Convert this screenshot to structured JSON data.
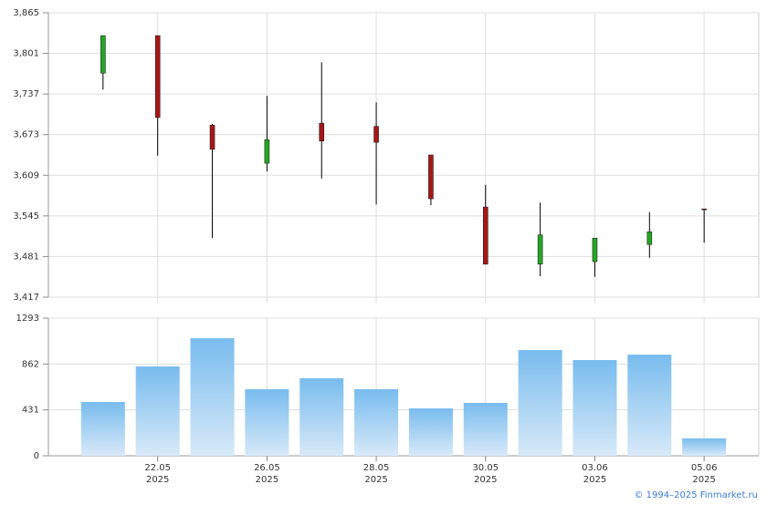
{
  "chart_data": [
    {
      "type": "candlestick",
      "open": [
        3770,
        3829,
        3688,
        3628,
        3691,
        3686,
        3641,
        3559,
        3469,
        3473,
        3500,
        3556
      ],
      "high": [
        3829,
        3829,
        3690,
        3734,
        3787,
        3724,
        3641,
        3594,
        3566,
        3510,
        3551,
        3556
      ],
      "low": [
        3744,
        3640,
        3510,
        3615,
        3604,
        3563,
        3562,
        3469,
        3450,
        3449,
        3479,
        3503
      ],
      "close": [
        3829,
        3700,
        3650,
        3665,
        3663,
        3661,
        3572,
        3469,
        3515,
        3510,
        3520,
        3555
      ],
      "up_color": "#22a822",
      "down_color": "#a81616",
      "ylim": [
        3417,
        3865
      ],
      "yticks": [
        {
          "value": 3417,
          "label": "3,417"
        },
        {
          "value": 3481,
          "label": "3,481"
        },
        {
          "value": 3545,
          "label": "3,545"
        },
        {
          "value": 3609,
          "label": "3,609"
        },
        {
          "value": 3673,
          "label": "3,673"
        },
        {
          "value": 3737,
          "label": "3,737"
        },
        {
          "value": 3801,
          "label": "3,801"
        },
        {
          "value": 3865,
          "label": "3,865"
        }
      ],
      "grid": true
    },
    {
      "type": "bar",
      "categories": [
        null,
        "22.05",
        null,
        "26.05",
        null,
        "28.05",
        null,
        "30.05",
        null,
        "03.06",
        null,
        "05.06"
      ],
      "category_years": [
        null,
        "2025",
        null,
        "2025",
        null,
        "2025",
        null,
        "2025",
        null,
        "2025",
        null,
        "2025"
      ],
      "values": [
        505,
        839,
        1104,
        625,
        728,
        625,
        445,
        497,
        993,
        899,
        950,
        163
      ],
      "color": "#78bcee",
      "ylim": [
        0,
        1293
      ],
      "yticks": [
        0,
        431,
        862,
        1293
      ],
      "grid": true
    },
    {
      "type": "credit",
      "text": "© 1994–2025 Finmarket.ru"
    }
  ]
}
